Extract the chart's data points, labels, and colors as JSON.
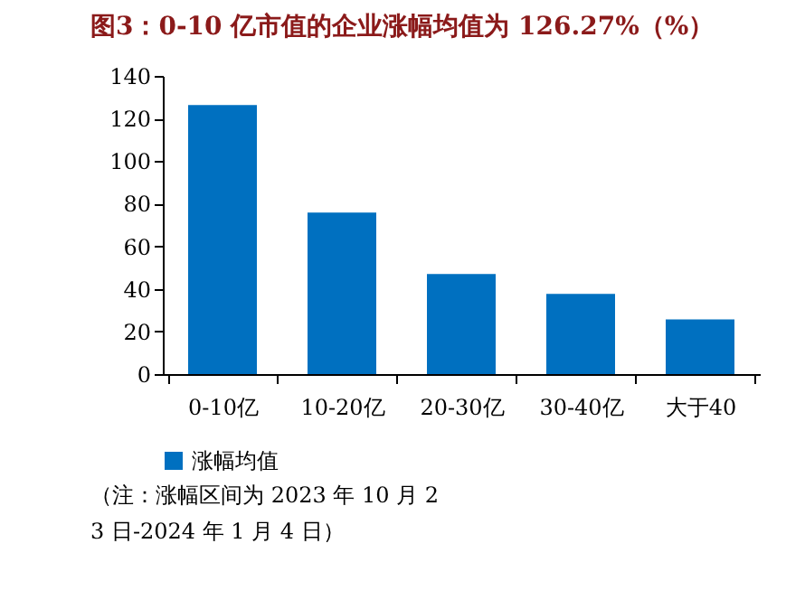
{
  "chart_data": {
    "type": "bar",
    "title": "图3：0-10 亿市值的企业涨幅均值为 126.27%（%）",
    "categories": [
      "0-10亿",
      "10-20亿",
      "20-30亿",
      "30-40亿",
      "大于40"
    ],
    "series": [
      {
        "name": "涨幅均值",
        "color": "#0070c0",
        "values": [
          126.27,
          75.8,
          47,
          37.6,
          25.7
        ]
      }
    ],
    "ylim": [
      0,
      140
    ],
    "yticks": [
      0,
      20,
      40,
      60,
      80,
      100,
      120,
      140
    ],
    "grid": false,
    "legend": "bottom",
    "annotations": [
      "（注：涨幅区间为 2023 年 10 月 23 日-2024 年 1 月 4 日）"
    ]
  }
}
